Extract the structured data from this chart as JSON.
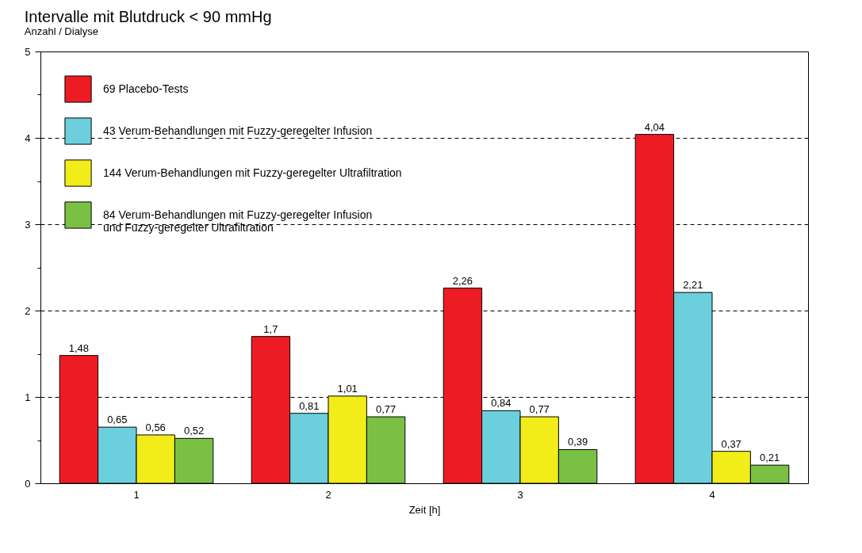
{
  "chart_data": {
    "type": "bar",
    "title": "Intervalle mit Blutdruck < 90 mmHg",
    "subtitle": "Anzahl / Dialyse",
    "xlabel": "Zeit [h]",
    "categories": [
      "1",
      "2",
      "3",
      "4"
    ],
    "series": [
      {
        "name": "69 Placebo-Tests",
        "color": "#ed1c24",
        "values": [
          1.48,
          1.7,
          2.26,
          4.04
        ],
        "value_labels": [
          "1,48",
          "1,7",
          "2,26",
          "4,04"
        ]
      },
      {
        "name": "43 Verum-Behandlungen mit Fuzzy-geregelter Infusion",
        "color": "#6ccfdd",
        "values": [
          0.65,
          0.81,
          0.84,
          2.21
        ],
        "value_labels": [
          "0,65",
          "0,81",
          "0,84",
          "2,21"
        ]
      },
      {
        "name": "144 Verum-Behandlungen mit Fuzzy-geregelter Ultrafiltration",
        "color": "#f2ec19",
        "values": [
          0.56,
          1.01,
          0.77,
          0.37
        ],
        "value_labels": [
          "0,56",
          "1,01",
          "0,77",
          "0,37"
        ]
      },
      {
        "name": "84 Verum-Behandlungen mit Fuzzy-geregelter Infusion\nund Fuzzy-geregelter Ultrafiltration",
        "color": "#7ac143",
        "values": [
          0.52,
          0.77,
          0.39,
          0.21
        ],
        "value_labels": [
          "0,52",
          "0,77",
          "0,39",
          "0,21"
        ]
      }
    ],
    "ylim": [
      0,
      5
    ],
    "yticks": [
      0,
      {
        "value": 0.5,
        "label": null
      },
      1,
      {
        "value": 1.5,
        "label": null
      },
      2,
      {
        "value": 2.5,
        "label": null
      },
      3,
      {
        "value": 3.5,
        "label": null
      },
      4,
      {
        "value": 4.5,
        "label": null
      },
      5
    ],
    "grid": "y",
    "legend": "top left",
    "line_style": "dashed"
  }
}
